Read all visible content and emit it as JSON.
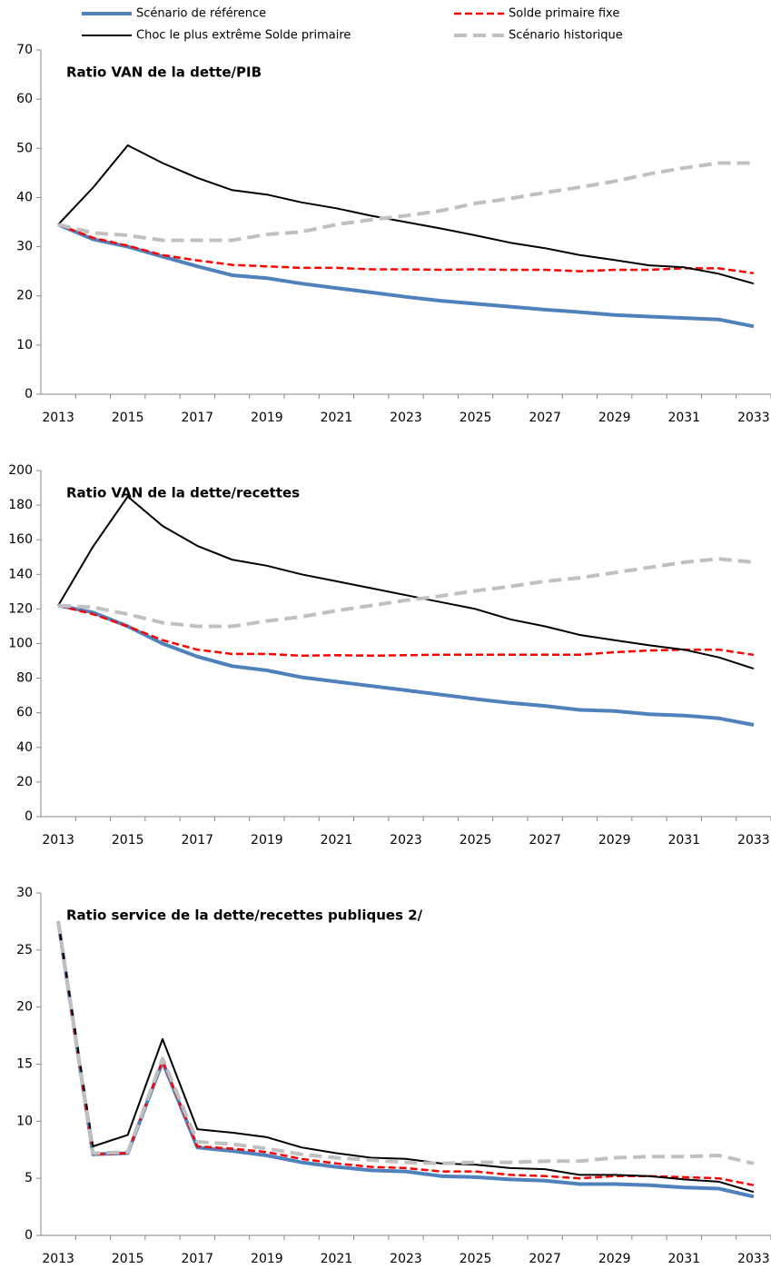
{
  "chart_data": [
    {
      "type": "line",
      "title": "Ratio VAN de la dette/PIB",
      "categories": [
        "2013",
        null,
        "2015",
        null,
        "2017",
        null,
        "2019",
        null,
        "2021",
        null,
        "2023",
        null,
        "2025",
        null,
        "2027",
        null,
        "2029",
        null,
        "2031",
        null,
        "2033"
      ],
      "ylim": [
        0,
        70
      ],
      "yticks": [
        0,
        10,
        20,
        30,
        40,
        50,
        60,
        70
      ],
      "series": [
        {
          "name": "Scénario de référence",
          "color": "#4f81bd",
          "dashed": false,
          "values": [
            34.5,
            31.5,
            30,
            28,
            26,
            24.2,
            23.6,
            22.5,
            21.6,
            20.7,
            19.8,
            19,
            18.4,
            17.8,
            17.2,
            16.7,
            16.1,
            15.8,
            15.5,
            15.2,
            13.8
          ]
        },
        {
          "name": "Solde primaire fixe",
          "color": "#ff0000",
          "dashed": true,
          "values": [
            34.5,
            31.8,
            30.2,
            28.3,
            27.2,
            26.3,
            26,
            25.7,
            25.7,
            25.4,
            25.4,
            25.3,
            25.4,
            25.3,
            25.3,
            25,
            25.3,
            25.3,
            25.6,
            25.6,
            24.6
          ]
        },
        {
          "name": "Choc le plus extrême Solde primaire",
          "color": "#000000",
          "dashed": false,
          "values": [
            34.5,
            42,
            50.6,
            47,
            44,
            41.5,
            40.6,
            39,
            37.8,
            36.3,
            35,
            33.7,
            32.3,
            30.8,
            29.7,
            28.3,
            27.3,
            26.2,
            25.8,
            24.5,
            22.5
          ]
        },
        {
          "name": "Scénario historique",
          "color": "#c0c0c0",
          "dashed": true,
          "values": [
            34.5,
            32.8,
            32.3,
            31.3,
            31.3,
            31.3,
            32.5,
            33,
            34.5,
            35.5,
            36.3,
            37.3,
            38.8,
            39.8,
            41,
            42.1,
            43.3,
            44.8,
            46,
            47,
            47
          ]
        }
      ]
    },
    {
      "type": "line",
      "title": "Ratio VAN de la dette/recettes",
      "categories": [
        "2013",
        null,
        "2015",
        null,
        "2017",
        null,
        "2019",
        null,
        "2021",
        null,
        "2023",
        null,
        "2025",
        null,
        "2027",
        null,
        "2029",
        null,
        "2031",
        null,
        "2033"
      ],
      "ylim": [
        0,
        200
      ],
      "yticks": [
        0,
        20,
        40,
        60,
        80,
        100,
        120,
        140,
        160,
        180,
        200
      ],
      "series": [
        {
          "color": "#4f81bd",
          "dashed": false,
          "values": [
            122,
            118,
            110,
            100,
            92.5,
            87,
            84.5,
            80.5,
            78,
            75.5,
            73,
            70.5,
            68,
            65.7,
            64,
            61.7,
            61,
            59.2,
            58.4,
            56.8,
            53
          ]
        },
        {
          "color": "#ff0000",
          "dashed": true,
          "values": [
            122,
            117,
            110,
            102,
            96.5,
            94,
            94,
            93,
            93.3,
            93,
            93.3,
            93.6,
            93.6,
            93.6,
            93.6,
            93.6,
            95,
            96,
            96.5,
            96.5,
            93.5
          ]
        },
        {
          "color": "#000000",
          "dashed": false,
          "values": [
            122,
            156,
            185,
            168,
            156.5,
            148.5,
            145,
            140,
            136,
            132,
            128,
            124,
            120,
            114,
            110,
            105,
            102,
            99,
            96.5,
            92,
            85.5
          ]
        },
        {
          "color": "#c0c0c0",
          "dashed": true,
          "values": [
            122,
            121,
            117,
            112,
            110,
            110,
            113,
            115.5,
            119,
            122,
            125,
            127.5,
            130.5,
            133,
            136,
            138,
            141,
            144,
            147,
            149,
            147
          ]
        }
      ]
    },
    {
      "type": "line",
      "title": "Ratio service de la dette/recettes  publiques 2/",
      "categories": [
        "2013",
        null,
        "2015",
        null,
        "2017",
        null,
        "2019",
        null,
        "2021",
        null,
        "2023",
        null,
        "2025",
        null,
        "2027",
        null,
        "2029",
        null,
        "2031",
        null,
        "2033"
      ],
      "ylim": [
        0,
        30
      ],
      "yticks": [
        0,
        5,
        10,
        15,
        20,
        25,
        30
      ],
      "series": [
        {
          "color": "#4f81bd",
          "dashed": false,
          "values": [
            27.5,
            7.1,
            7.2,
            15.2,
            7.7,
            7.4,
            7,
            6.4,
            6,
            5.7,
            5.6,
            5.2,
            5.1,
            4.9,
            4.8,
            4.5,
            4.5,
            4.4,
            4.2,
            4.1,
            3.4
          ]
        },
        {
          "color": "#ff0000",
          "dashed": true,
          "values": [
            27.5,
            7.1,
            7.2,
            15.3,
            7.8,
            7.6,
            7.3,
            6.7,
            6.3,
            6,
            5.9,
            5.6,
            5.6,
            5.3,
            5.2,
            5,
            5.2,
            5.2,
            5.1,
            5,
            4.4
          ]
        },
        {
          "color": "#000000",
          "dashed": false,
          "values": [
            27.5,
            7.8,
            8.8,
            17.2,
            9.3,
            9,
            8.6,
            7.7,
            7.2,
            6.8,
            6.7,
            6.3,
            6.2,
            5.9,
            5.8,
            5.3,
            5.3,
            5.2,
            4.9,
            4.7,
            3.8
          ]
        },
        {
          "color": "#c0c0c0",
          "dashed": true,
          "values": [
            27.5,
            7.2,
            7.3,
            15.5,
            8.2,
            8,
            7.6,
            7.1,
            6.8,
            6.6,
            6.4,
            6.3,
            6.4,
            6.4,
            6.5,
            6.5,
            6.8,
            6.9,
            6.9,
            7,
            6.3
          ]
        }
      ]
    }
  ]
}
